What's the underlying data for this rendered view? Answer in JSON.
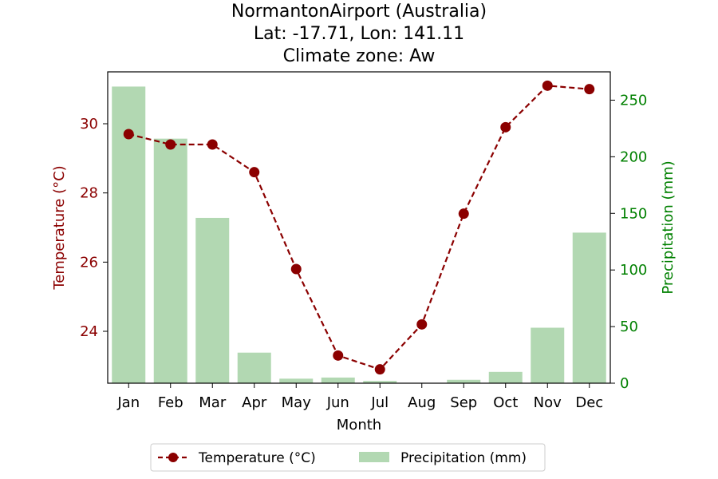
{
  "chart_data": {
    "type": "bar+line",
    "title": [
      "NormantonAirport (Australia)",
      "Lat: -17.71, Lon: 141.11",
      "Climate zone: Aw"
    ],
    "xlabel": "Month",
    "categories": [
      "Jan",
      "Feb",
      "Mar",
      "Apr",
      "May",
      "Jun",
      "Jul",
      "Aug",
      "Sep",
      "Oct",
      "Nov",
      "Dec"
    ],
    "series": [
      {
        "name": "Temperature (°C)",
        "type": "line",
        "axis": "left",
        "color": "#8b0000",
        "values": [
          29.7,
          29.4,
          29.4,
          28.6,
          25.8,
          23.3,
          22.9,
          24.2,
          27.4,
          29.9,
          31.1,
          31.0
        ]
      },
      {
        "name": "Precipitation (mm)",
        "type": "bar",
        "axis": "right",
        "color": "#b2d8b2",
        "values": [
          262,
          216,
          146,
          27,
          4,
          5,
          2,
          0,
          3,
          10,
          49,
          133
        ]
      }
    ],
    "y_left": {
      "label": "Temperature (°C)",
      "ticks": [
        24,
        26,
        28,
        30
      ],
      "range": [
        22.5,
        31.5
      ],
      "color": "#8b0000"
    },
    "y_right": {
      "label": "Precipitation (mm)",
      "ticks": [
        0,
        50,
        100,
        150,
        200,
        250
      ],
      "range": [
        0,
        275
      ],
      "color": "#008000"
    },
    "grid": false,
    "legend": {
      "placement": "bottom-center",
      "entries": [
        "Temperature (°C)",
        "Precipitation (mm)"
      ]
    }
  }
}
